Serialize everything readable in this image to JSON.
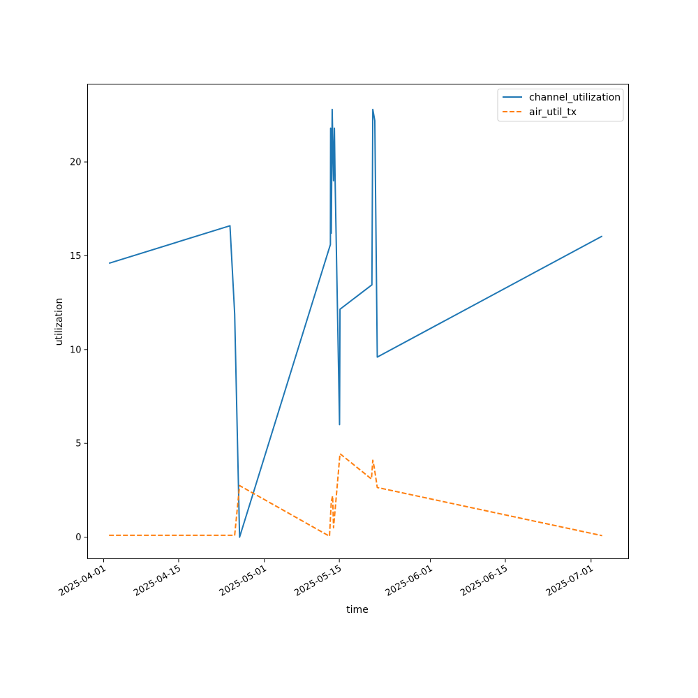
{
  "chart_data": {
    "type": "line",
    "title": "",
    "xlabel": "time",
    "ylabel": "utilization",
    "x_axis_type": "date",
    "xlim": [
      "2025-03-29",
      "2025-07-08"
    ],
    "ylim": [
      -1.15,
      24.15
    ],
    "xticks": [
      "2025-04-01",
      "2025-04-15",
      "2025-05-01",
      "2025-05-15",
      "2025-06-01",
      "2025-06-15",
      "2025-07-01"
    ],
    "yticks": [
      0,
      5,
      10,
      15,
      20
    ],
    "grid": false,
    "legend_position": "top-right",
    "series": [
      {
        "name": "channel_utilization",
        "color": "#1f77b4",
        "style": "solid",
        "points": [
          [
            "2025-04-02T00:00",
            14.6
          ],
          [
            "2025-04-24T14:00",
            16.6
          ],
          [
            "2025-04-25T11:00",
            11.9
          ],
          [
            "2025-04-26T09:00",
            0.0
          ],
          [
            "2025-05-13T08:00",
            15.6
          ],
          [
            "2025-05-13T09:00",
            21.8
          ],
          [
            "2025-05-13T12:00",
            16.2
          ],
          [
            "2025-05-13T16:00",
            22.8
          ],
          [
            "2025-05-13T22:00",
            19.0
          ],
          [
            "2025-05-14T02:00",
            21.8
          ],
          [
            "2025-05-14T05:00",
            19.1
          ],
          [
            "2025-05-15T01:00",
            6.0
          ],
          [
            "2025-05-15T03:00",
            12.15
          ],
          [
            "2025-05-21T02:00",
            13.45
          ],
          [
            "2025-05-21T06:00",
            22.8
          ],
          [
            "2025-05-21T15:00",
            22.2
          ],
          [
            "2025-05-22T02:00",
            9.6
          ],
          [
            "2025-07-03T02:00",
            16.05
          ]
        ]
      },
      {
        "name": "air_util_tx",
        "color": "#ff7f0e",
        "style": "dashed",
        "points": [
          [
            "2025-04-02T00:00",
            0.1
          ],
          [
            "2025-04-25T11:00",
            0.1
          ],
          [
            "2025-04-26T09:00",
            2.75
          ],
          [
            "2025-05-13T04:00",
            0.05
          ],
          [
            "2025-05-13T12:00",
            1.9
          ],
          [
            "2025-05-13T18:00",
            2.2
          ],
          [
            "2025-05-13T22:00",
            0.5
          ],
          [
            "2025-05-14T04:00",
            1.3
          ],
          [
            "2025-05-15T03:00",
            4.45
          ],
          [
            "2025-05-21T00:00",
            3.1
          ],
          [
            "2025-05-21T06:00",
            4.1
          ],
          [
            "2025-05-21T12:00",
            3.75
          ],
          [
            "2025-05-22T02:00",
            2.65
          ],
          [
            "2025-07-03T02:00",
            0.08
          ]
        ]
      }
    ]
  }
}
